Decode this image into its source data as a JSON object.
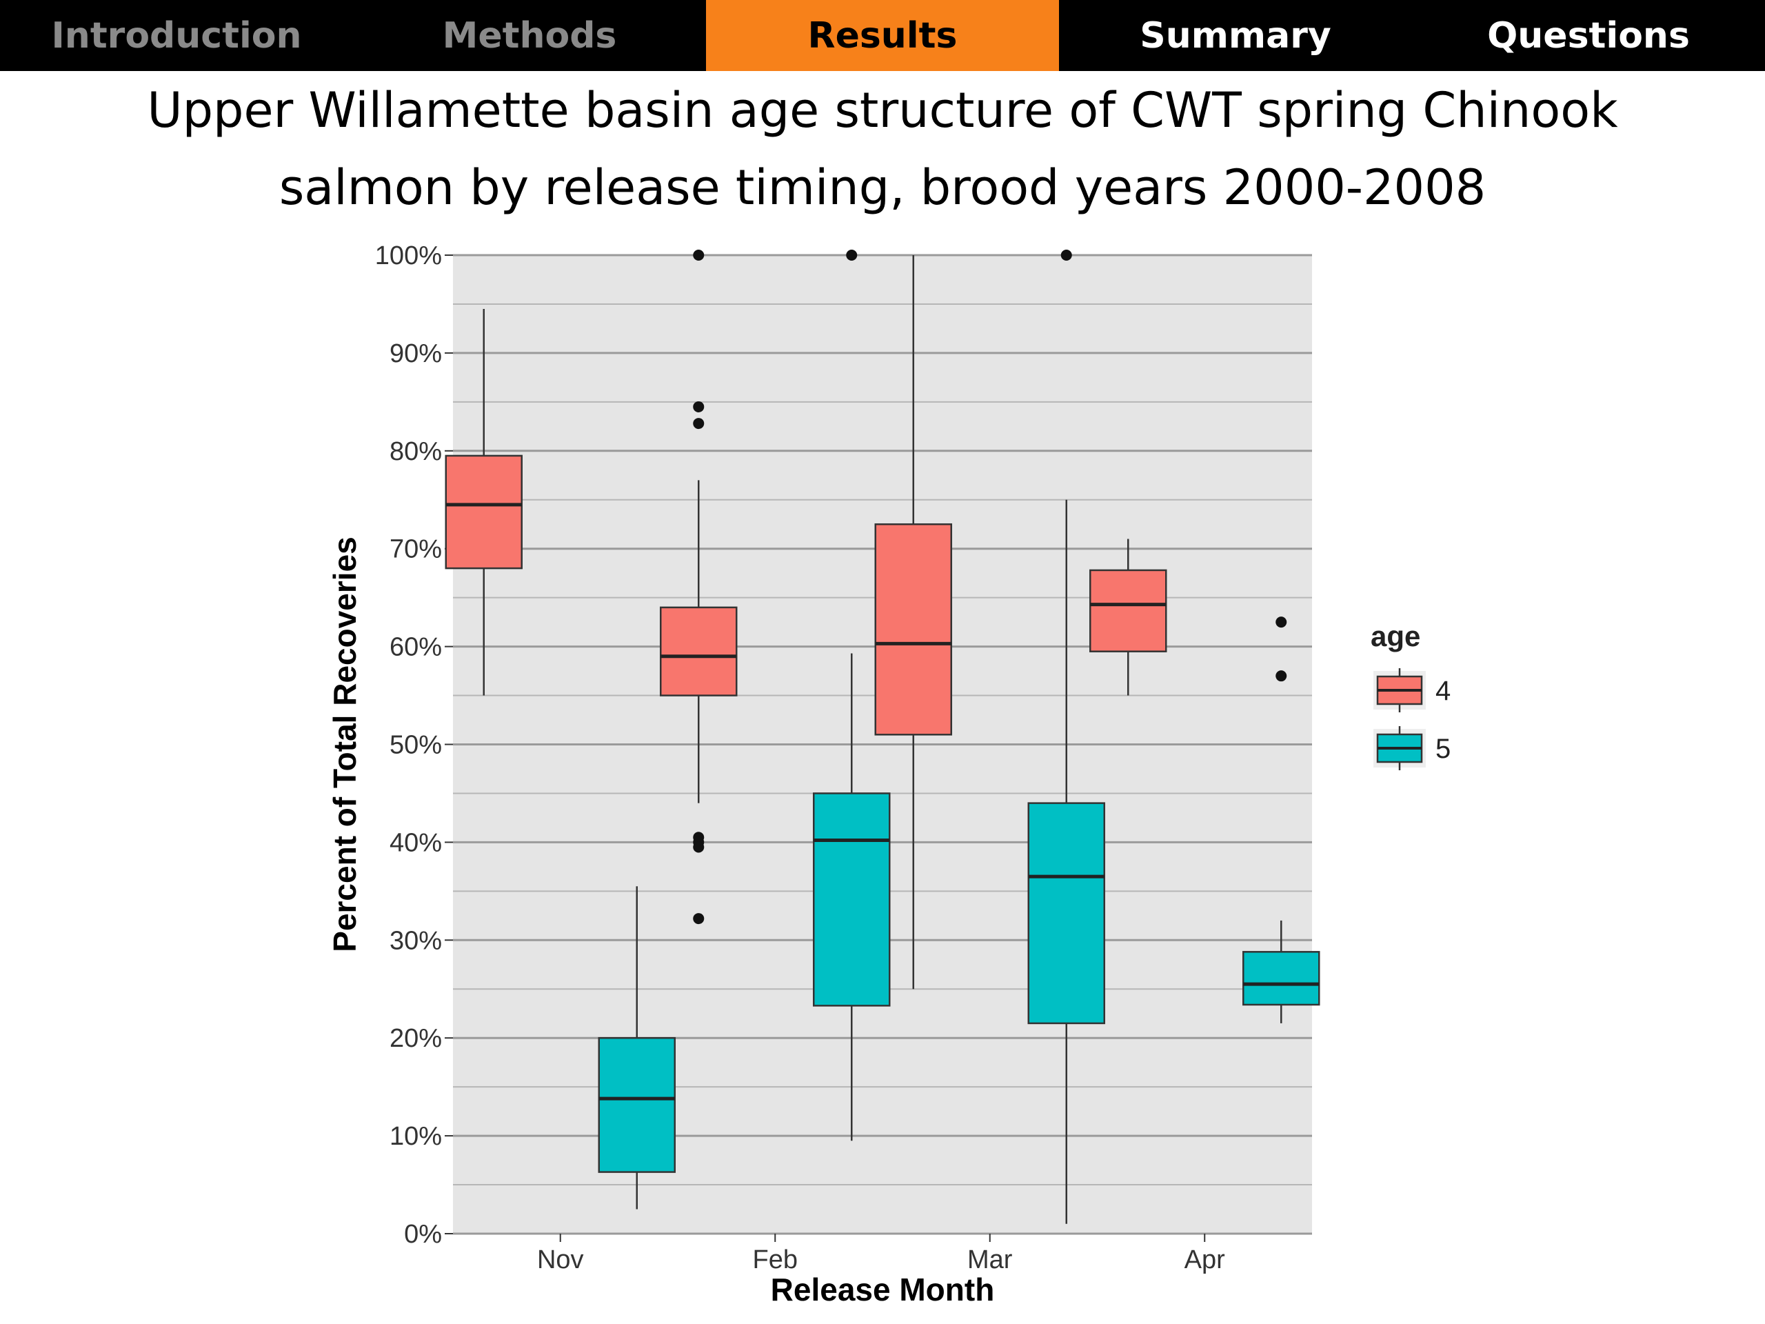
{
  "nav": {
    "tabs": [
      {
        "label": "Introduction",
        "state": "dim"
      },
      {
        "label": "Methods",
        "state": "dim"
      },
      {
        "label": "Results",
        "state": "active"
      },
      {
        "label": "Summary",
        "state": "normal"
      },
      {
        "label": "Questions",
        "state": "normal"
      }
    ],
    "active_color": "#f7811a"
  },
  "slide": {
    "title_line1": "Upper Willamette basin age structure of CWT spring Chinook",
    "title_line2": "salmon by release timing, brood years 2000-2008"
  },
  "chart_data": {
    "type": "box",
    "title": "",
    "xlabel": "Release Month",
    "ylabel": "Percent of Total Recoveries",
    "categories": [
      "Nov",
      "Feb",
      "Mar",
      "Apr"
    ],
    "ylim": [
      0,
      100
    ],
    "yticks": [
      "0%",
      "10%",
      "20%",
      "30%",
      "40%",
      "50%",
      "60%",
      "70%",
      "80%",
      "90%",
      "100%"
    ],
    "grid": true,
    "legend": {
      "title": "age",
      "placement": "right"
    },
    "series": [
      {
        "name": "4",
        "color": "#f8766d",
        "boxes": [
          {
            "category": "Nov",
            "min": 55,
            "q1": 68,
            "median": 74.5,
            "q3": 79.5,
            "max": 94.5,
            "outliers": []
          },
          {
            "category": "Feb",
            "min": 44,
            "q1": 55,
            "median": 59,
            "q3": 64,
            "max": 77,
            "outliers": [
              84.5,
              82.8,
              40.5,
              40,
              39.5,
              32.2,
              100
            ]
          },
          {
            "category": "Mar",
            "min": 25,
            "q1": 51,
            "median": 60.3,
            "q3": 72.5,
            "max": 100,
            "outliers": []
          },
          {
            "category": "Apr",
            "min": 55,
            "q1": 59.5,
            "median": 64.3,
            "q3": 67.8,
            "max": 71,
            "outliers": []
          }
        ]
      },
      {
        "name": "5",
        "color": "#00bfc4",
        "boxes": [
          {
            "category": "Nov",
            "min": 2.5,
            "q1": 6.3,
            "median": 13.8,
            "q3": 20,
            "max": 35.5,
            "outliers": []
          },
          {
            "category": "Feb",
            "min": 9.5,
            "q1": 23.3,
            "median": 40.2,
            "q3": 45,
            "max": 59.3,
            "outliers": [
              100
            ]
          },
          {
            "category": "Mar",
            "min": 1,
            "q1": 21.5,
            "median": 36.5,
            "q3": 44,
            "max": 75,
            "outliers": [
              100
            ]
          },
          {
            "category": "Apr",
            "min": 21.5,
            "q1": 23.4,
            "median": 25.5,
            "q3": 28.8,
            "max": 32,
            "outliers": [
              62.5,
              57
            ]
          }
        ]
      }
    ]
  }
}
